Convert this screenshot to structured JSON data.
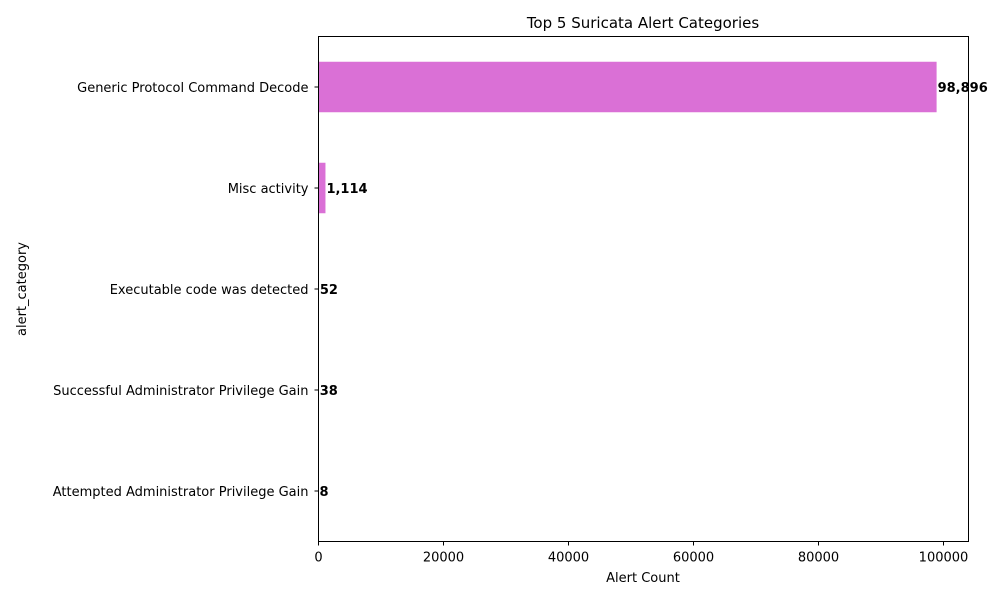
{
  "chart_data": {
    "type": "bar",
    "orientation": "horizontal",
    "title": "Top 5 Suricata Alert Categories",
    "xlabel": "Alert Count",
    "ylabel": "alert_category",
    "xlim": [
      0,
      104000
    ],
    "xticks": [
      0,
      20000,
      40000,
      60000,
      80000,
      100000
    ],
    "categories": [
      "Generic Protocol Command Decode",
      "Misc activity",
      "Executable code was detected",
      "Successful Administrator Privilege Gain",
      "Attempted Administrator Privilege Gain"
    ],
    "values": [
      98896,
      1114,
      52,
      38,
      8
    ],
    "value_labels": [
      "98,896",
      "1,114",
      "52",
      "38",
      "8"
    ],
    "bar_color": "#da70d6",
    "grid": false,
    "legend": "none"
  }
}
